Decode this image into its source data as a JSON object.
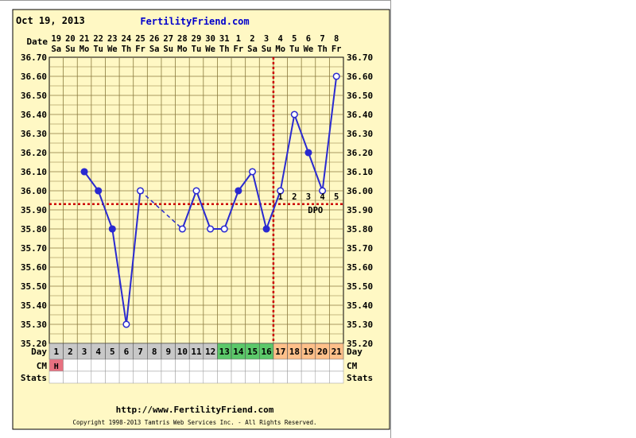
{
  "header": {
    "chart_date": "Oct 19, 2013",
    "brand": "FertilityFriend.com"
  },
  "row_labels": {
    "date": "Date",
    "day": "Day",
    "cm": "CM",
    "stats": "Stats"
  },
  "dates": [
    "19",
    "20",
    "21",
    "22",
    "23",
    "24",
    "25",
    "26",
    "27",
    "28",
    "29",
    "30",
    "31",
    "1",
    "2",
    "3",
    "4",
    "5",
    "6",
    "7",
    "8"
  ],
  "weekdays": [
    "Sa",
    "Su",
    "Mo",
    "Tu",
    "We",
    "Th",
    "Fr",
    "Sa",
    "Su",
    "Mo",
    "Tu",
    "We",
    "Th",
    "Fr",
    "Sa",
    "Su",
    "Mo",
    "Tu",
    "We",
    "Th",
    "Fr"
  ],
  "cycle_days": [
    "1",
    "2",
    "3",
    "4",
    "5",
    "6",
    "7",
    "8",
    "9",
    "10",
    "11",
    "12",
    "13",
    "14",
    "15",
    "16",
    "17",
    "18",
    "19",
    "20",
    "21"
  ],
  "cm_entries": {
    "1": "H"
  },
  "dpo": {
    "labels": [
      "1",
      "2",
      "3",
      "4",
      "5"
    ],
    "text": "DPO"
  },
  "footer": {
    "url": "http://www.FertilityFriend.com",
    "copyright": "Copyright 1998-2013 Tamtris Web Services Inc. - All Rights Reserved."
  },
  "colors": {
    "plot_bg": "#fff8c4",
    "grid": "#8a7a3e",
    "line": "#2a2ad0",
    "coverline": "#cc0000",
    "day_gray": "#c8c8c8",
    "day_green": "#5cc86a",
    "day_orange": "#ffc08a",
    "cm_bar": "#e87080",
    "brand": "#0000cc"
  },
  "chart_data": {
    "type": "line",
    "x": [
      1,
      2,
      3,
      4,
      5,
      6,
      7,
      8,
      9,
      10,
      11,
      12,
      13,
      14,
      15,
      16,
      17,
      18,
      19,
      20,
      21
    ],
    "y_ticks": [
      "35.20",
      "35.30",
      "35.40",
      "35.50",
      "35.60",
      "35.70",
      "35.80",
      "35.90",
      "36.00",
      "36.10",
      "36.20",
      "36.30",
      "36.40",
      "36.50",
      "36.60",
      "36.70"
    ],
    "ylim": [
      35.2,
      36.7
    ],
    "series": [
      {
        "temps": [
          {
            "day": 3,
            "temp": 36.1,
            "filled": true
          },
          {
            "day": 4,
            "temp": 36.0,
            "filled": true
          },
          {
            "day": 5,
            "temp": 35.8,
            "filled": true
          },
          {
            "day": 6,
            "temp": 35.3,
            "filled": false
          },
          {
            "day": 7,
            "temp": 36.0,
            "filled": false
          },
          {
            "day": 10,
            "temp": 35.8,
            "filled": false
          },
          {
            "day": 11,
            "temp": 36.0,
            "filled": false
          },
          {
            "day": 12,
            "temp": 35.8,
            "filled": false
          },
          {
            "day": 13,
            "temp": 35.8,
            "filled": false
          },
          {
            "day": 14,
            "temp": 36.0,
            "filled": true
          },
          {
            "day": 15,
            "temp": 36.1,
            "filled": false
          },
          {
            "day": 16,
            "temp": 35.8,
            "filled": true
          },
          {
            "day": 17,
            "temp": 36.0,
            "filled": false
          },
          {
            "day": 18,
            "temp": 36.4,
            "filled": false
          },
          {
            "day": 19,
            "temp": 36.2,
            "filled": true
          },
          {
            "day": 20,
            "temp": 36.0,
            "filled": false
          },
          {
            "day": 21,
            "temp": 36.6,
            "filled": false
          }
        ]
      }
    ],
    "coverline": 35.93,
    "ovulation_day": 16,
    "grid": true
  }
}
